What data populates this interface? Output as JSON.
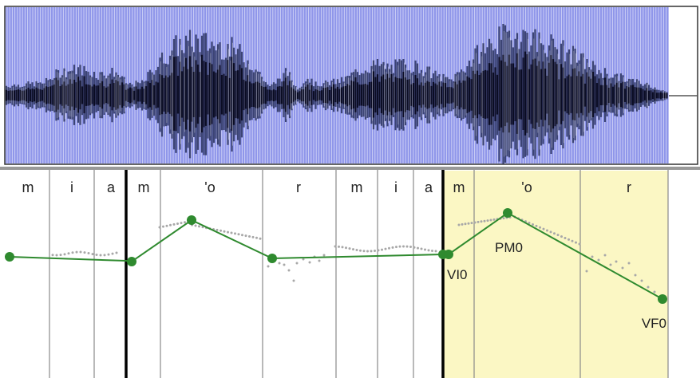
{
  "colors": {
    "waveform_bg": "#8f96ea",
    "waveform_dark": "#0b0d24",
    "waveform_mid": "#3c4474",
    "highlight": "#fbf7c4",
    "contour": "#2f8a2f",
    "pitch_dots": "#a8a8a8"
  },
  "segments": [
    {
      "label": "m"
    },
    {
      "label": "i"
    },
    {
      "label": "a"
    },
    {
      "label": "m"
    },
    {
      "label": "'o"
    },
    {
      "label": "r"
    },
    {
      "label": "m"
    },
    {
      "label": "i"
    },
    {
      "label": "a"
    },
    {
      "label": "m"
    },
    {
      "label": "'o"
    },
    {
      "label": "r"
    }
  ],
  "contour_points": [
    {
      "label": ""
    },
    {
      "label": ""
    },
    {
      "label": ""
    },
    {
      "label": ""
    },
    {
      "label": ""
    },
    {
      "label": ""
    },
    {
      "label": "VI0"
    },
    {
      "label": "PM0"
    },
    {
      "label": "VF0"
    }
  ]
}
